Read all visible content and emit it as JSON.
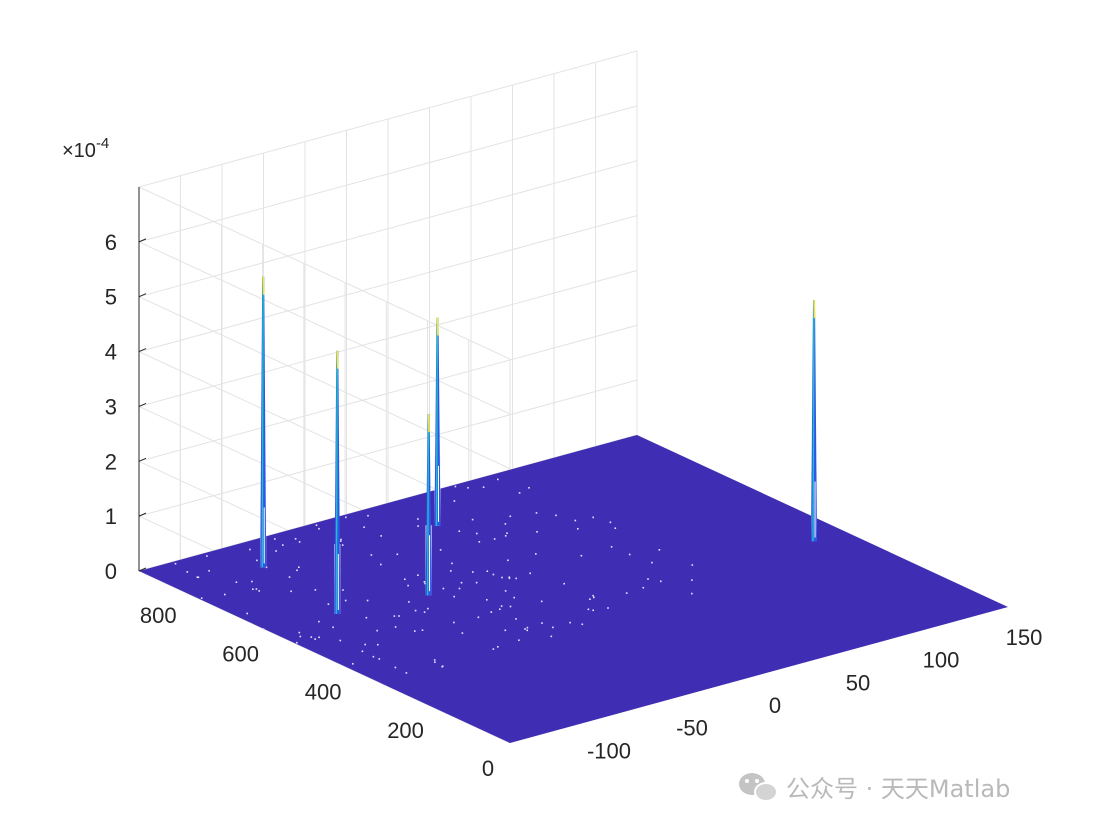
{
  "chart_data": {
    "type": "surface",
    "z_exponent_label": "×10",
    "z_exponent_power": "-4",
    "x_ticks": [
      "-100",
      "-50",
      "0",
      "50",
      "100",
      "150"
    ],
    "y_ticks": [
      "0",
      "200",
      "400",
      "600",
      "800"
    ],
    "z_ticks": [
      "0",
      "1",
      "2",
      "3",
      "4",
      "5",
      "6"
    ],
    "xlim": [
      -150,
      150
    ],
    "ylim": [
      0,
      900
    ],
    "zlim": [
      0,
      0.0007
    ],
    "grid": true,
    "surface_color": "#3f2eb3",
    "peaks": [
      {
        "x": -100,
        "y": 800,
        "z": 0.00053
      },
      {
        "x": -110,
        "y": 580,
        "z": 0.00048
      },
      {
        "x": -60,
        "y": 560,
        "z": 0.00033
      },
      {
        "x": 0,
        "y": 780,
        "z": 0.00038
      },
      {
        "x": 130,
        "y": 390,
        "z": 0.00044
      }
    ]
  },
  "watermark": {
    "text": "公众号 · 天天Matlab"
  }
}
